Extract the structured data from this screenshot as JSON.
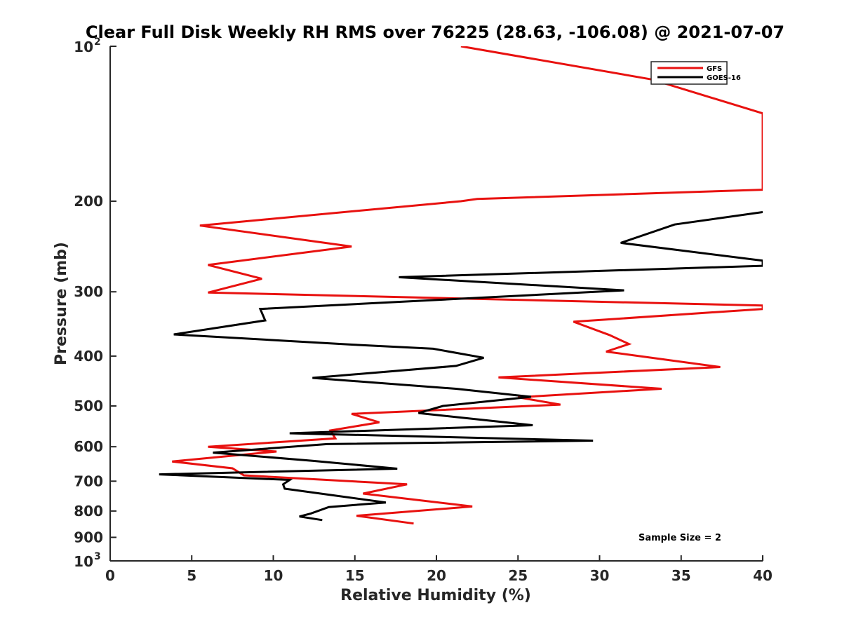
{
  "chart_data": {
    "type": "line",
    "title": "Clear Full Disk Weekly RH RMS over 76225 (28.63, -106.08) @ 2021-07-07",
    "xlabel": "Relative Humidity (%)",
    "ylabel": "Pressure (mb)",
    "xlim": [
      0,
      40
    ],
    "ylim": [
      100,
      1000
    ],
    "yscale": "log",
    "y_reversed": true,
    "grid": false,
    "legend_position": "top-right",
    "x_ticks": [
      "0",
      "5",
      "10",
      "15",
      "20",
      "25",
      "30",
      "35",
      "40"
    ],
    "y_ticks": [
      {
        "value": 100,
        "base": "10",
        "exp": "2"
      },
      {
        "value": 200,
        "label": "200"
      },
      {
        "value": 300,
        "label": "300"
      },
      {
        "value": 400,
        "label": "400"
      },
      {
        "value": 500,
        "label": "500"
      },
      {
        "value": 600,
        "label": "600"
      },
      {
        "value": 700,
        "label": "700"
      },
      {
        "value": 800,
        "label": "800"
      },
      {
        "value": 900,
        "label": "900"
      },
      {
        "value": 1000,
        "base": "10",
        "exp": "3"
      }
    ],
    "annotation": "Sample Size = 2",
    "series": [
      {
        "name": "GFS",
        "color": "#e8110f",
        "points": [
          [
            21.5,
            100
          ],
          [
            33.2,
            116
          ],
          [
            40,
            135
          ],
          [
            40,
            190
          ],
          [
            22.5,
            198
          ],
          [
            21.5,
            200
          ],
          [
            5.5,
            223
          ],
          [
            14.8,
            245
          ],
          [
            6.0,
            266
          ],
          [
            9.3,
            283
          ],
          [
            6.0,
            301
          ],
          [
            40,
            319
          ],
          [
            40,
            324
          ],
          [
            28.4,
            343
          ],
          [
            30.6,
            364
          ],
          [
            31.8,
            379
          ],
          [
            30.4,
            392
          ],
          [
            37.4,
            420
          ],
          [
            23.8,
            440
          ],
          [
            33.8,
            463
          ],
          [
            25.0,
            481
          ],
          [
            27.6,
            497
          ],
          [
            14.8,
            518
          ],
          [
            16.5,
            538
          ],
          [
            13.5,
            558
          ],
          [
            13.8,
            578
          ],
          [
            6.0,
            600
          ],
          [
            10.2,
            613
          ],
          [
            3.8,
            641
          ],
          [
            7.5,
            661
          ],
          [
            8.2,
            682
          ],
          [
            18.2,
            710
          ],
          [
            15.5,
            740
          ],
          [
            22.2,
            784
          ],
          [
            15.1,
            817
          ],
          [
            18.6,
            846
          ]
        ]
      },
      {
        "name": "GOES-16",
        "color": "#000000",
        "points": [
          [
            40,
            210
          ],
          [
            34.6,
            222
          ],
          [
            31.3,
            241
          ],
          [
            40,
            261
          ],
          [
            40,
            267
          ],
          [
            17.7,
            281
          ],
          [
            31.5,
            298
          ],
          [
            9.2,
            324
          ],
          [
            9.5,
            341
          ],
          [
            3.9,
            363
          ],
          [
            14.9,
            380
          ],
          [
            19.8,
            387
          ],
          [
            22.9,
            403
          ],
          [
            21.2,
            418
          ],
          [
            12.4,
            441
          ],
          [
            21.2,
            463
          ],
          [
            25.8,
            480
          ],
          [
            20.4,
            500
          ],
          [
            18.9,
            516
          ],
          [
            25.9,
            545
          ],
          [
            11.0,
            565
          ],
          [
            29.6,
            584
          ],
          [
            13.3,
            593
          ],
          [
            6.3,
            616
          ],
          [
            12.4,
            639
          ],
          [
            17.6,
            662
          ],
          [
            3.0,
            679
          ],
          [
            11.0,
            696
          ],
          [
            10.6,
            710
          ],
          [
            10.7,
            724
          ],
          [
            16.9,
            770
          ],
          [
            13.4,
            786
          ],
          [
            12.3,
            809
          ],
          [
            11.6,
            820
          ],
          [
            13.0,
            833
          ]
        ]
      }
    ]
  }
}
